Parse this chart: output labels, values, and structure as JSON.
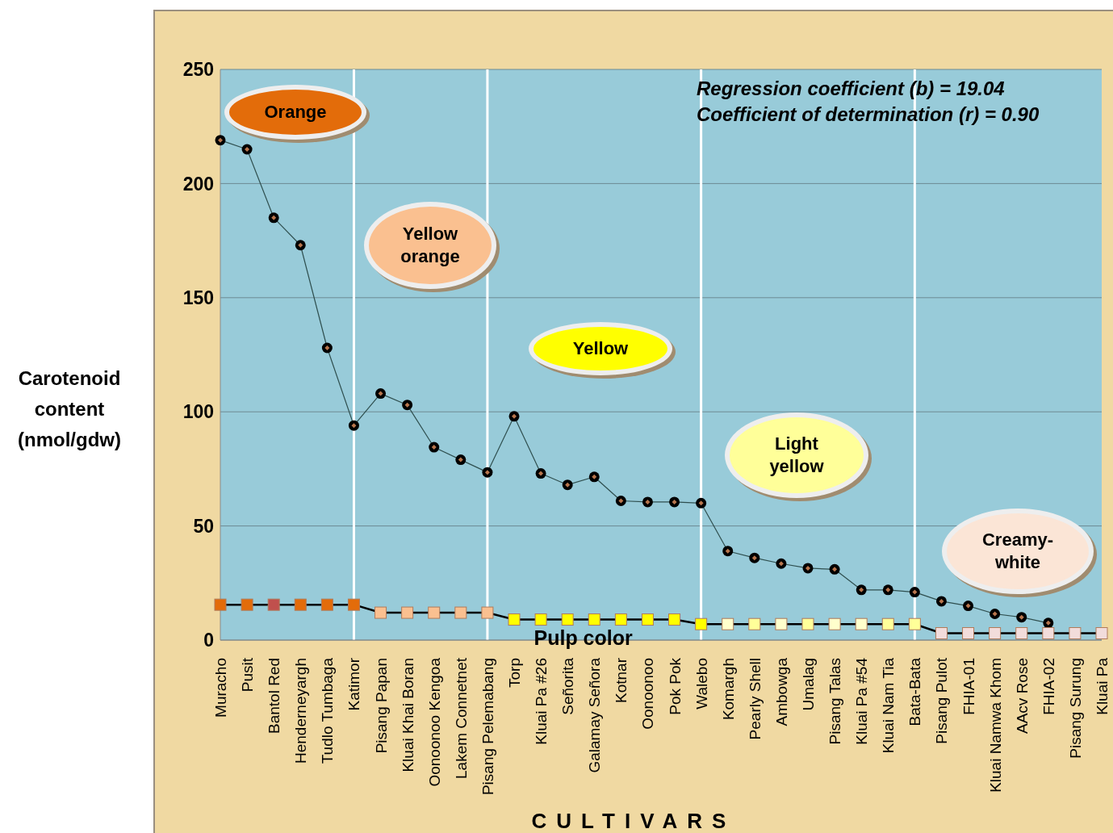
{
  "chart_data": {
    "type": "line",
    "xlabel": "CULTIVARS",
    "ylabel": "Carotenoid content (nmol/gdw)",
    "categories": [
      "Muracho",
      "Pusit",
      "Bantol Red",
      "Henderneyargh",
      "Tudlo Tumbaga",
      "Katimor",
      "Pisang Papan",
      "Kluai Khai Boran",
      "Oonoonoo Kengoa",
      "Lakem Connetnet",
      "Pisang Pelemabang",
      "Torp",
      "Kluai Pa #26",
      "Señorita",
      "Galamay Señora",
      "Kotnar",
      "Oonoonoo",
      "Pok Pok",
      "Walebo",
      "Komargh",
      "Pearly Shell",
      "Ambowga",
      "Umalag",
      "Pisang Talas",
      "Kluai Pa #54",
      "Kluai Nam Tia",
      "Bata-Bata",
      "Pisang Pulot",
      "FHIA-01",
      "Kluai Namwa Khom",
      "AAcv Rose",
      "FHIA-02",
      "Pisang Surung",
      "Kluai Pa"
    ],
    "series": [
      {
        "color": "#000000",
        "marker": "circle",
        "values": [
          219,
          215,
          185,
          173,
          128,
          94,
          108,
          103,
          84.5,
          79,
          73.5,
          98,
          73,
          68,
          71.5,
          61,
          60.5,
          60.5,
          60,
          39,
          36,
          33.5,
          31.5,
          31,
          22,
          22,
          21,
          17,
          15,
          11.5,
          10,
          7.5,
          null,
          null
        ]
      },
      {
        "name": "Pulp color",
        "color": "#000000",
        "marker": "square",
        "values": [
          15.5,
          15.5,
          15.5,
          15.5,
          15.5,
          15.5,
          12,
          12,
          12,
          12,
          12,
          9,
          9,
          9,
          9,
          9,
          9,
          9,
          7,
          7,
          7,
          7,
          7,
          7,
          7,
          7,
          7,
          3,
          3,
          3,
          3,
          3,
          3,
          3
        ],
        "colors": [
          "#e36c0a",
          "#e36c0a",
          "#c0504d",
          "#e36c0a",
          "#e36c0a",
          "#e36c0a",
          "#fac090",
          "#fac090",
          "#fac090",
          "#fac090",
          "#fac090",
          "#ffff00",
          "#ffff00",
          "#ffff00",
          "#ffff00",
          "#ffff00",
          "#ffff00",
          "#ffff00",
          "#ffff00",
          "#ffffcc",
          "#ffff99",
          "#ffffcc",
          "#ffff99",
          "#ffffcc",
          "#ffffcc",
          "#ffff99",
          "#ffff99",
          "#f2dcdb",
          "#f2dcdb",
          "#f2dcdb",
          "#f2dcdb",
          "#f2dcdb",
          "#f2dcdb",
          "#f2dcdb"
        ]
      }
    ],
    "ylim": [
      0,
      250
    ],
    "yticks": [
      0,
      50,
      100,
      150,
      200,
      250
    ],
    "grid": "y",
    "ref_lines": [
      {
        "axis": "x",
        "value": "Katimor",
        "color": "#ffffff"
      },
      {
        "axis": "x",
        "value": "Pisang Pelemabang",
        "color": "#ffffff"
      },
      {
        "axis": "x",
        "value": "Walebo",
        "color": "#ffffff"
      },
      {
        "axis": "x",
        "value": "Bata-Bata",
        "color": "#ffffff"
      }
    ],
    "annotations": [
      "Regression coefficient (b) = 19.04",
      "Coefficient of determination (r) = 0.90",
      "Orange",
      "Yellow orange",
      "Yellow",
      "Light yellow",
      "Creamy-white"
    ]
  }
}
